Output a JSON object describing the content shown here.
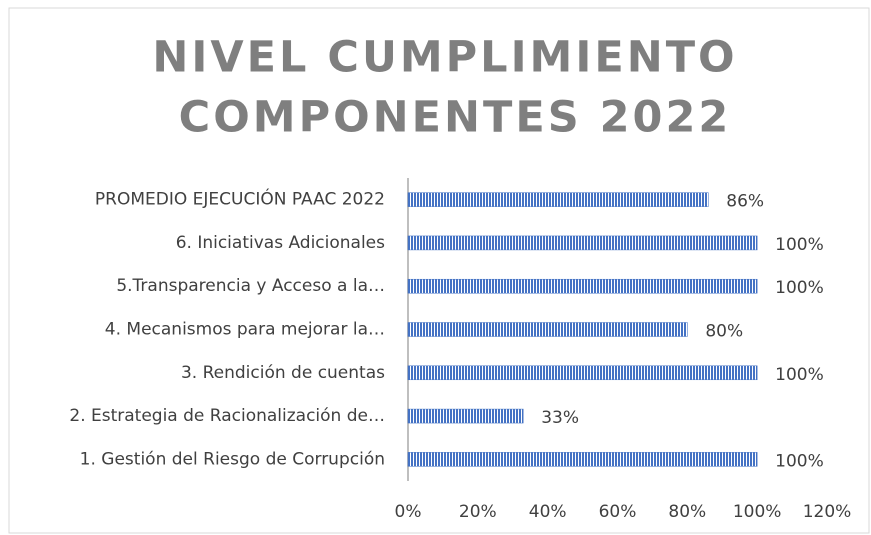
{
  "chart_data": {
    "type": "hbar",
    "title": [
      "NIVEL CUMPLIMIENTO",
      "COMPONENTES 2022"
    ],
    "categories": [
      "PROMEDIO EJECUCIÓN PAAC 2022",
      "6. Iniciativas Adicionales",
      "5.Transparencia y Acceso a  la…",
      "4. Mecanismos para mejorar la…",
      "3. Rendición de cuentas",
      "2. Estrategia de Racionalización de…",
      "1. Gestión del Riesgo de Corrupción"
    ],
    "values": [
      86,
      100,
      100,
      80,
      100,
      33,
      100
    ],
    "value_labels": [
      "86%",
      "100%",
      "100%",
      "80%",
      "100%",
      "33%",
      "100%"
    ],
    "color": "#4472c4",
    "xlim": [
      0,
      120
    ],
    "xticks": [
      {
        "value": 0,
        "label": "0%"
      },
      {
        "value": 20,
        "label": "20%"
      },
      {
        "value": 40,
        "label": "40%"
      },
      {
        "value": 60,
        "label": "60%"
      },
      {
        "value": 80,
        "label": "80%"
      },
      {
        "value": 100,
        "label": "100%"
      },
      {
        "value": 120,
        "label": "120%"
      }
    ],
    "grid": false
  }
}
